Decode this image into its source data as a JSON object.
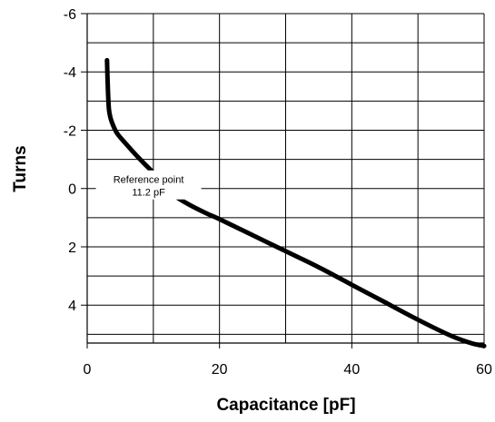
{
  "chart_data": {
    "type": "line",
    "title": "",
    "xlabel": "Capacitance [pF]",
    "ylabel": "Turns",
    "xlim": [
      0,
      60
    ],
    "ylim": [
      -6,
      5.3
    ],
    "y_inverted": true,
    "x_ticks": [
      0,
      20,
      40,
      60
    ],
    "x_tick_labels": [
      "0",
      "20",
      "40",
      "60"
    ],
    "y_ticks": [
      -6,
      -4,
      -2,
      0,
      2,
      4
    ],
    "y_tick_labels": [
      "-6",
      "-4",
      "-2",
      "0",
      "2",
      "4"
    ],
    "x_gridlines": [
      10,
      20,
      30,
      40,
      50
    ],
    "y_gridlines": [
      -5,
      -4,
      -3,
      -2,
      -1,
      0,
      1,
      2,
      3,
      4,
      5
    ],
    "grid": true,
    "legend": "none",
    "line_color": "#000000",
    "series": [
      {
        "x": [
          3.0,
          3.1,
          3.3,
          3.7,
          4.5,
          6,
          8,
          10,
          11.2,
          13,
          15,
          18,
          20,
          25,
          30,
          35,
          40,
          45,
          50,
          55,
          58,
          60
        ],
        "values": [
          -4.4,
          -3.6,
          -2.7,
          -2.3,
          -1.9,
          -1.5,
          -1.0,
          -0.55,
          -0.3,
          0.2,
          0.5,
          0.85,
          1.05,
          1.6,
          2.15,
          2.7,
          3.3,
          3.9,
          4.5,
          5.05,
          5.3,
          5.4
        ]
      }
    ],
    "annotations": [
      {
        "x": 11.2,
        "y": 0.0,
        "lines": [
          "Reference point",
          "11.2 pF"
        ]
      }
    ]
  }
}
